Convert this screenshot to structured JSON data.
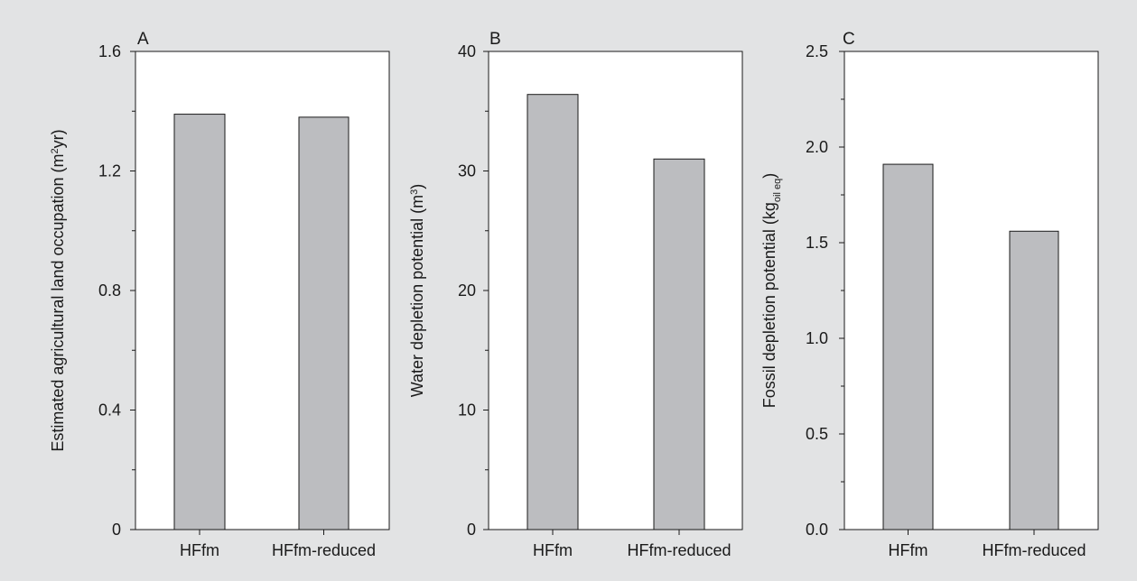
{
  "colors": {
    "background": "#e2e3e4",
    "plot_area": "#ffffff",
    "bar_fill": "#bcbdc0",
    "axis": "#1a1a1a"
  },
  "chart_data": [
    {
      "type": "bar",
      "panel_label": "A",
      "categories": [
        "HFfm",
        "HFfm-reduced"
      ],
      "values": [
        1.39,
        1.38
      ],
      "ylim": [
        0,
        1.6
      ],
      "yticks": [
        0,
        0.4,
        0.8,
        1.2,
        1.6
      ],
      "ytick_labels": [
        "0",
        "0.4",
        "0.8",
        "1.2",
        "1.6"
      ],
      "ylabel": {
        "pre": "Estimated agricultural land occupation (m",
        "sup": "2",
        "post": "yr)"
      },
      "xlabel": "",
      "grid": false,
      "legend": "none"
    },
    {
      "type": "bar",
      "panel_label": "B",
      "categories": [
        "HFfm",
        "HFfm-reduced"
      ],
      "values": [
        36.4,
        31.0
      ],
      "ylim": [
        0,
        40
      ],
      "yticks": [
        0,
        10,
        20,
        30,
        40
      ],
      "ytick_labels": [
        "0",
        "10",
        "20",
        "30",
        "40"
      ],
      "ylabel": {
        "pre": "Water depletion potential (m",
        "sup": "3",
        "post": ")"
      },
      "xlabel": "",
      "grid": false,
      "legend": "none"
    },
    {
      "type": "bar",
      "panel_label": "C",
      "categories": [
        "HFfm",
        "HFfm-reduced"
      ],
      "values": [
        1.91,
        1.56
      ],
      "ylim": [
        0,
        2.5
      ],
      "yticks": [
        0,
        0.5,
        1.0,
        1.5,
        2.0,
        2.5
      ],
      "ytick_labels": [
        "0.0",
        "0.5",
        "1.0",
        "1.5",
        "2.0",
        "2.5"
      ],
      "ylabel": {
        "pre": "Fossil depletion potential (kg",
        "sub": "oil eq",
        "post": ")"
      },
      "xlabel": "",
      "grid": false,
      "legend": "none"
    }
  ]
}
